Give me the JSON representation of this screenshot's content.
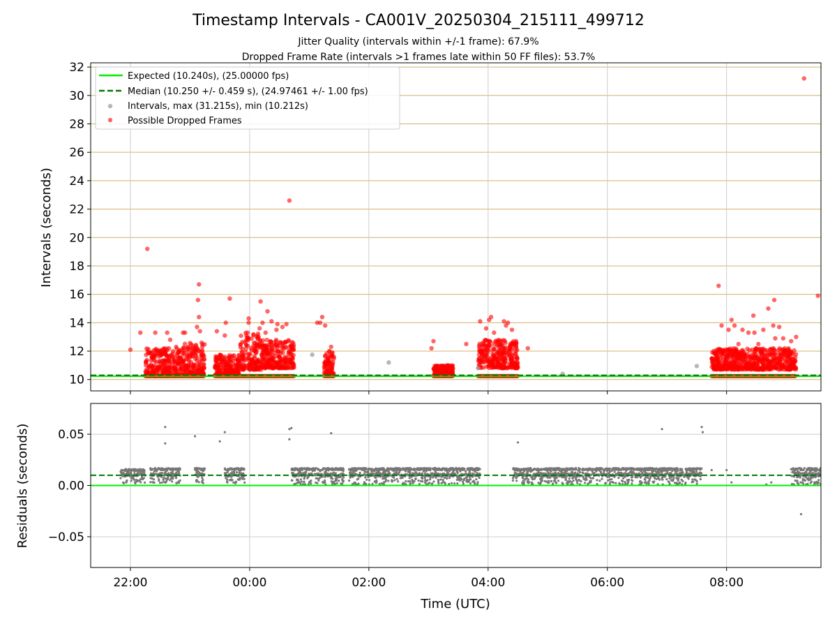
{
  "title": "Timestamp Intervals - CA001V_20250304_215111_499712",
  "subtitle_lines": [
    "Jitter Quality (intervals within +/-1 frame): 67.9%",
    "Dropped Frame Rate (intervals >1 frames late within 50 FF files): 53.7%"
  ],
  "colors": {
    "expected": "#00ee00",
    "median": "#007700",
    "intervals": "#999999",
    "dropped": "#ff0000",
    "residuals": "#777777",
    "top_grid": "#d4b06a",
    "grid": "#cccccc"
  },
  "chart_data": [
    {
      "type": "scatter",
      "panel": "intervals",
      "ylabel": "Intervals (seconds)",
      "xlim": [
        "21:20",
        "09:35"
      ],
      "ylim": [
        9.2,
        32.3
      ],
      "yticks": [
        10,
        12,
        14,
        16,
        18,
        20,
        22,
        24,
        26,
        28,
        30,
        32
      ],
      "ytick_labels": [
        "10",
        "12",
        "14",
        "16",
        "18",
        "20",
        "22",
        "24",
        "26",
        "28",
        "30",
        "32"
      ],
      "grid": "y-tan, x-grey",
      "legend_position": "upper-left",
      "legend": [
        "Expected (10.240s), (25.00000 fps)",
        "Median (10.250 +/- 0.459 s), (24.97461 +/- 1.00 fps)",
        "Intervals, max (31.215s), min (10.212s)",
        "Possible Dropped Frames"
      ],
      "expected_y": 10.24,
      "median_y": 10.25,
      "baseline_segments": [
        [
          "21:50",
          "00:45"
        ],
        [
          "00:50",
          "04:35"
        ],
        [
          "04:45",
          "09:35"
        ]
      ],
      "dropped_clusters": [
        {
          "x": [
            "22:15",
            "22:45"
          ],
          "y_min": 10.25,
          "y_max": 12.2
        },
        {
          "x": [
            "22:45",
            "23:15"
          ],
          "y_min": 10.3,
          "y_max": 12.6
        },
        {
          "x": [
            "23:25",
            "23:50"
          ],
          "y_min": 10.3,
          "y_max": 11.8
        },
        {
          "x": [
            "23:50",
            "00:12"
          ],
          "y_min": 10.7,
          "y_max": 13.3
        },
        {
          "x": [
            "00:12",
            "00:45"
          ],
          "y_min": 10.8,
          "y_max": 12.8
        },
        {
          "x": [
            "01:15",
            "01:25"
          ],
          "y_min": 10.4,
          "y_max": 12.0
        },
        {
          "x": [
            "03:05",
            "03:25"
          ],
          "y_min": 10.3,
          "y_max": 11.0
        },
        {
          "x": [
            "03:50",
            "04:30"
          ],
          "y_min": 10.8,
          "y_max": 12.8
        },
        {
          "x": [
            "07:45",
            "09:10"
          ],
          "y_min": 10.7,
          "y_max": 12.2
        }
      ],
      "dropped_outliers": [
        {
          "x": "22:00",
          "y": 12.1
        },
        {
          "x": "22:10",
          "y": 13.3
        },
        {
          "x": "22:17",
          "y": 19.2
        },
        {
          "x": "22:25",
          "y": 13.3
        },
        {
          "x": "22:37",
          "y": 13.3
        },
        {
          "x": "22:40",
          "y": 12.8
        },
        {
          "x": "22:53",
          "y": 13.3
        },
        {
          "x": "22:55",
          "y": 13.3
        },
        {
          "x": "22:58",
          "y": 12.3
        },
        {
          "x": "23:07",
          "y": 13.7
        },
        {
          "x": "23:08",
          "y": 15.6
        },
        {
          "x": "23:09",
          "y": 16.7
        },
        {
          "x": "23:09",
          "y": 14.4
        },
        {
          "x": "23:10",
          "y": 13.4
        },
        {
          "x": "23:27",
          "y": 13.4
        },
        {
          "x": "23:35",
          "y": 13.1
        },
        {
          "x": "23:36",
          "y": 14.0
        },
        {
          "x": "23:40",
          "y": 15.7
        },
        {
          "x": "23:58",
          "y": 13.3
        },
        {
          "x": "23:59",
          "y": 14.0
        },
        {
          "x": "23:59",
          "y": 14.3
        },
        {
          "x": "00:10",
          "y": 13.6
        },
        {
          "x": "00:11",
          "y": 15.5
        },
        {
          "x": "00:13",
          "y": 14.0
        },
        {
          "x": "00:16",
          "y": 13.3
        },
        {
          "x": "00:18",
          "y": 14.8
        },
        {
          "x": "00:22",
          "y": 14.1
        },
        {
          "x": "00:27",
          "y": 13.5
        },
        {
          "x": "00:28",
          "y": 13.9
        },
        {
          "x": "00:33",
          "y": 13.7
        },
        {
          "x": "00:37",
          "y": 13.9
        },
        {
          "x": "00:40",
          "y": 22.6
        },
        {
          "x": "01:08",
          "y": 14.0
        },
        {
          "x": "01:11",
          "y": 14.0
        },
        {
          "x": "01:13",
          "y": 14.4
        },
        {
          "x": "01:16",
          "y": 13.8
        },
        {
          "x": "01:22",
          "y": 12.3
        },
        {
          "x": "03:03",
          "y": 12.2
        },
        {
          "x": "03:05",
          "y": 12.7
        },
        {
          "x": "03:38",
          "y": 12.5
        },
        {
          "x": "03:52",
          "y": 14.1
        },
        {
          "x": "03:58",
          "y": 13.6
        },
        {
          "x": "04:01",
          "y": 14.2
        },
        {
          "x": "04:03",
          "y": 14.4
        },
        {
          "x": "04:06",
          "y": 13.3
        },
        {
          "x": "04:16",
          "y": 14.1
        },
        {
          "x": "04:18",
          "y": 13.8
        },
        {
          "x": "04:20",
          "y": 14.0
        },
        {
          "x": "04:24",
          "y": 13.5
        },
        {
          "x": "04:40",
          "y": 12.2
        },
        {
          "x": "07:52",
          "y": 16.6
        },
        {
          "x": "07:55",
          "y": 13.8
        },
        {
          "x": "08:02",
          "y": 13.5
        },
        {
          "x": "08:05",
          "y": 14.2
        },
        {
          "x": "08:08",
          "y": 13.8
        },
        {
          "x": "08:12",
          "y": 12.5
        },
        {
          "x": "08:16",
          "y": 13.5
        },
        {
          "x": "08:22",
          "y": 13.3
        },
        {
          "x": "08:27",
          "y": 14.5
        },
        {
          "x": "08:28",
          "y": 13.3
        },
        {
          "x": "08:32",
          "y": 12.5
        },
        {
          "x": "08:37",
          "y": 13.5
        },
        {
          "x": "08:42",
          "y": 15.0
        },
        {
          "x": "08:47",
          "y": 13.8
        },
        {
          "x": "08:48",
          "y": 15.6
        },
        {
          "x": "08:49",
          "y": 12.9
        },
        {
          "x": "08:53",
          "y": 13.7
        },
        {
          "x": "08:57",
          "y": 12.9
        },
        {
          "x": "09:05",
          "y": 12.7
        },
        {
          "x": "09:10",
          "y": 13.0
        },
        {
          "x": "09:18",
          "y": 31.2
        },
        {
          "x": "09:32",
          "y": 15.9
        }
      ],
      "interval_outliers": [
        {
          "x": "01:03",
          "y": 11.75
        },
        {
          "x": "02:20",
          "y": 11.2
        },
        {
          "x": "03:50",
          "y": 10.8
        },
        {
          "x": "05:15",
          "y": 10.4
        },
        {
          "x": "07:30",
          "y": 10.95
        }
      ]
    },
    {
      "type": "scatter",
      "panel": "residuals",
      "xlabel": "Time (UTC)",
      "ylabel": "Residuals (seconds)",
      "xlim": [
        "21:20",
        "09:35"
      ],
      "ylim": [
        -0.08,
        0.08
      ],
      "xticks": [
        "22:00",
        "00:00",
        "02:00",
        "04:00",
        "06:00",
        "08:00"
      ],
      "yticks": [
        -0.05,
        0.0,
        0.05
      ],
      "ytick_labels": [
        "−0.05",
        "0.00",
        "0.05"
      ],
      "grid": true,
      "expected_y": 0.0,
      "median_y": 0.01,
      "segments": [
        {
          "x": [
            "21:50",
            "22:15"
          ],
          "y_min": 0.002,
          "y_max": 0.016
        },
        {
          "x": [
            "22:20",
            "22:50"
          ],
          "y_min": 0.002,
          "y_max": 0.017
        },
        {
          "x": [
            "23:05",
            "23:15"
          ],
          "y_min": 0.002,
          "y_max": 0.017
        },
        {
          "x": [
            "23:35",
            "23:55"
          ],
          "y_min": 0.002,
          "y_max": 0.017
        },
        {
          "x": [
            "00:42",
            "01:35"
          ],
          "y_min": 0.001,
          "y_max": 0.017
        },
        {
          "x": [
            "01:40",
            "03:52"
          ],
          "y_min": 0.001,
          "y_max": 0.017
        },
        {
          "x": [
            "04:25",
            "07:35"
          ],
          "y_min": 0.001,
          "y_max": 0.017
        },
        {
          "x": [
            "09:05",
            "09:35"
          ],
          "y_min": 0.001,
          "y_max": 0.017
        }
      ],
      "outliers": [
        {
          "x": "22:35",
          "y": 0.057
        },
        {
          "x": "22:35",
          "y": 0.041
        },
        {
          "x": "23:05",
          "y": 0.048
        },
        {
          "x": "23:30",
          "y": 0.043
        },
        {
          "x": "23:35",
          "y": 0.052
        },
        {
          "x": "00:40",
          "y": 0.055
        },
        {
          "x": "00:42",
          "y": 0.056
        },
        {
          "x": "00:40",
          "y": 0.045
        },
        {
          "x": "01:22",
          "y": 0.051
        },
        {
          "x": "04:30",
          "y": 0.042
        },
        {
          "x": "06:55",
          "y": 0.055
        },
        {
          "x": "07:35",
          "y": 0.057
        },
        {
          "x": "07:36",
          "y": 0.052
        },
        {
          "x": "07:45",
          "y": 0.015
        },
        {
          "x": "08:00",
          "y": 0.015
        },
        {
          "x": "08:05",
          "y": 0.003
        },
        {
          "x": "08:40",
          "y": 0.001
        },
        {
          "x": "08:45",
          "y": 0.003
        },
        {
          "x": "09:15",
          "y": -0.028
        }
      ]
    }
  ]
}
